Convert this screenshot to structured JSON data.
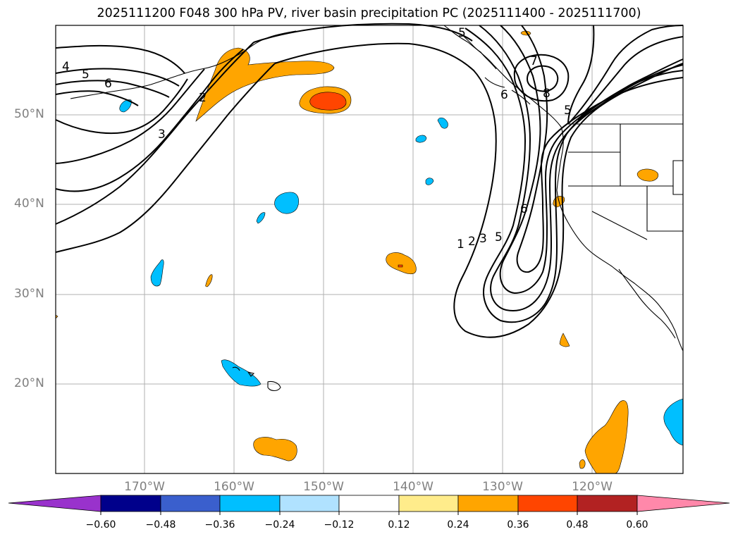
{
  "title": "2025111200 F048 300 hPa PV, river basin precipitation PC (2025111400 - 2025111700)",
  "map": {
    "lat_labels": [
      "50°N",
      "40°N",
      "30°N",
      "20°N"
    ],
    "lon_labels": [
      "170°W",
      "160°W",
      "150°W",
      "140°W",
      "130°W",
      "120°W"
    ],
    "contour_labels": [
      "4",
      "5",
      "6",
      "2",
      "3",
      "1",
      "2",
      "3",
      "5",
      "6",
      "7",
      "8",
      "6",
      "5",
      "5"
    ],
    "colors": {
      "coast": "#000000",
      "grid": "#b0b0b0",
      "pos_medium": "#ffa500",
      "pos_strong": "#ff4500",
      "neg_medium": "#00bfff"
    }
  },
  "colorbar": {
    "labels": [
      "−0.60",
      "−0.48",
      "−0.36",
      "−0.24",
      "−0.12",
      "0.12",
      "0.24",
      "0.36",
      "0.48",
      "0.60"
    ],
    "colors": [
      "#9932cc",
      "#00008b",
      "#3a5fcd",
      "#00bfff",
      "#b0e2ff",
      "#ffffff",
      "#ffec8b",
      "#ffa500",
      "#ff4500",
      "#b22222",
      "#ff88aa"
    ]
  }
}
